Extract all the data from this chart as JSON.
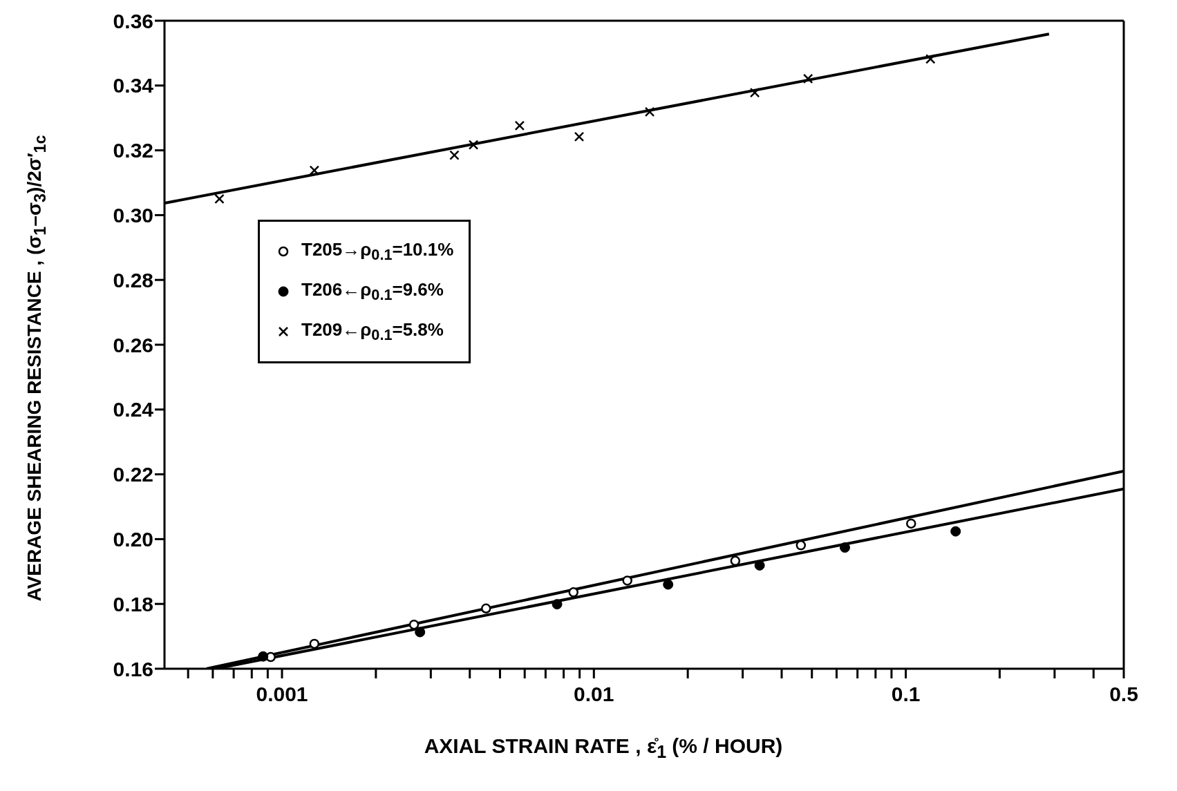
{
  "chart_data": {
    "type": "scatter",
    "xlabel": "AXIAL STRAIN RATE , ε̊$_{1}$ (% / HOUR)",
    "ylabel": "AVERAGE SHEARING RESISTANCE , (σ$_{1}$–σ$_{3}$)/2σ′$_{1c}$",
    "log": "x",
    "xlim": [
      0.00042,
      0.5
    ],
    "xticks": [
      {
        "value": 0.0005,
        "label": null
      },
      {
        "value": 0.0006,
        "label": null
      },
      {
        "value": 0.0007,
        "label": null
      },
      {
        "value": 0.0008,
        "label": null
      },
      {
        "value": 0.0009,
        "label": null
      },
      0.001,
      {
        "value": 0.002,
        "label": null
      },
      {
        "value": 0.003,
        "label": null
      },
      {
        "value": 0.004,
        "label": null
      },
      {
        "value": 0.005,
        "label": null
      },
      {
        "value": 0.006,
        "label": null
      },
      {
        "value": 0.007,
        "label": null
      },
      {
        "value": 0.008,
        "label": null
      },
      {
        "value": 0.009,
        "label": null
      },
      0.01,
      {
        "value": 0.02,
        "label": null
      },
      {
        "value": 0.03,
        "label": null
      },
      {
        "value": 0.04,
        "label": null
      },
      {
        "value": 0.05,
        "label": null
      },
      {
        "value": 0.06,
        "label": null
      },
      {
        "value": 0.07,
        "label": null
      },
      {
        "value": 0.08,
        "label": null
      },
      {
        "value": 0.09,
        "label": null
      },
      0.1,
      {
        "value": 0.2,
        "label": null
      },
      {
        "value": 0.3,
        "label": null
      },
      {
        "value": 0.4,
        "label": null
      },
      0.5
    ],
    "ylim": [
      0.16,
      0.36
    ],
    "yticks": [
      0.16,
      0.18,
      {
        "value": 0.2,
        "label": "0.20"
      },
      0.22,
      0.24,
      0.26,
      0.28,
      {
        "value": 0.3,
        "label": "0.30"
      },
      0.32,
      0.34,
      0.36
    ],
    "grid": false,
    "legend": "top left",
    "series": [
      {
        "name": "T205→ρ$_{0.1}$=10.1%",
        "color": "#000000",
        "marker": "open-circle",
        "x": [
          0.00092,
          0.00127,
          0.00265,
          0.00451,
          0.0086,
          0.0128,
          0.0284,
          0.0461,
          0.104
        ],
        "values": [
          0.1636,
          0.1677,
          0.1736,
          0.1786,
          0.1836,
          0.1872,
          0.1933,
          0.1981,
          0.2048
        ]
      },
      {
        "name": "T206←ρ$_{0.1}$=9.6%",
        "color": "#000000",
        "marker": "circle",
        "x": [
          0.00087,
          0.00277,
          0.00762,
          0.0173,
          0.034,
          0.0638,
          0.1445
        ],
        "values": [
          0.1638,
          0.1713,
          0.1799,
          0.186,
          0.1919,
          0.1974,
          0.2024
        ]
      },
      {
        "name": "T209←ρ$_{0.1}$=5.8%",
        "color": "#000000",
        "marker": "cross",
        "x": [
          0.00063,
          0.00127,
          0.00357,
          0.00411,
          0.00578,
          0.00897,
          0.0151,
          0.0328,
          0.0486,
          0.12
        ],
        "values": [
          0.305,
          0.3138,
          0.3185,
          0.3217,
          0.3276,
          0.3242,
          0.3319,
          0.3378,
          0.3421,
          0.3482
        ]
      },
      {
        "type": "line",
        "color": "#000000",
        "marker": "none",
        "line_style": "solid",
        "x": [
          0.00042,
          0.288
        ],
        "values": [
          0.3037,
          0.3559
        ]
      },
      {
        "type": "line",
        "color": "#000000",
        "marker": "none",
        "line_style": "solid",
        "x": [
          0.000573,
          0.5
        ],
        "values": [
          0.16,
          0.221
        ]
      },
      {
        "type": "line",
        "color": "#000000",
        "marker": "none",
        "line_style": "solid",
        "x": [
          0.000614,
          0.5
        ],
        "values": [
          0.16,
          0.2155
        ]
      }
    ]
  }
}
